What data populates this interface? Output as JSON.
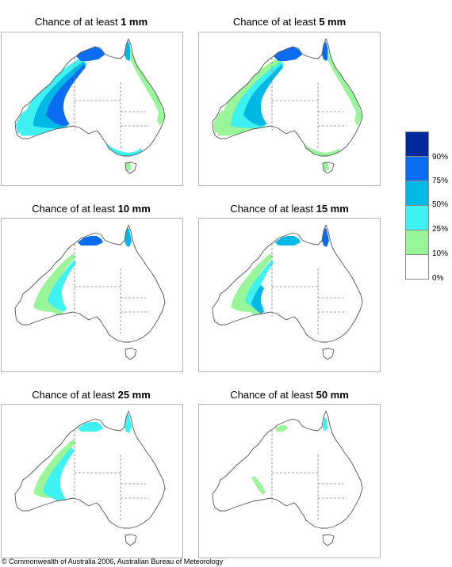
{
  "panels": [
    {
      "prefix": "Chance of at least ",
      "amount": "1 mm"
    },
    {
      "prefix": "Chance of at least ",
      "amount": "5 mm"
    },
    {
      "prefix": "Chance of at least ",
      "amount": "10 mm"
    },
    {
      "prefix": "Chance of at least ",
      "amount": "15 mm"
    },
    {
      "prefix": "Chance of at least ",
      "amount": "25 mm"
    },
    {
      "prefix": "Chance of at least ",
      "amount": "50 mm"
    }
  ],
  "legend": {
    "labels": [
      "90%",
      "75%",
      "50%",
      "25%",
      "10%",
      "0%"
    ],
    "colors": [
      "#002a9c",
      "#0a6cf0",
      "#00b8e6",
      "#3ef2f2",
      "#98f598",
      "#ffffff"
    ]
  },
  "colors": {
    "c10": "#98f598",
    "c25": "#3ef2f2",
    "c50": "#00b8e6",
    "c75": "#0a6cf0",
    "c90": "#002a9c",
    "outline": "#555555",
    "border": "#888888"
  },
  "copyright": "© Commonwealth of Australia 2006, Australian Bureau of Meteorology"
}
